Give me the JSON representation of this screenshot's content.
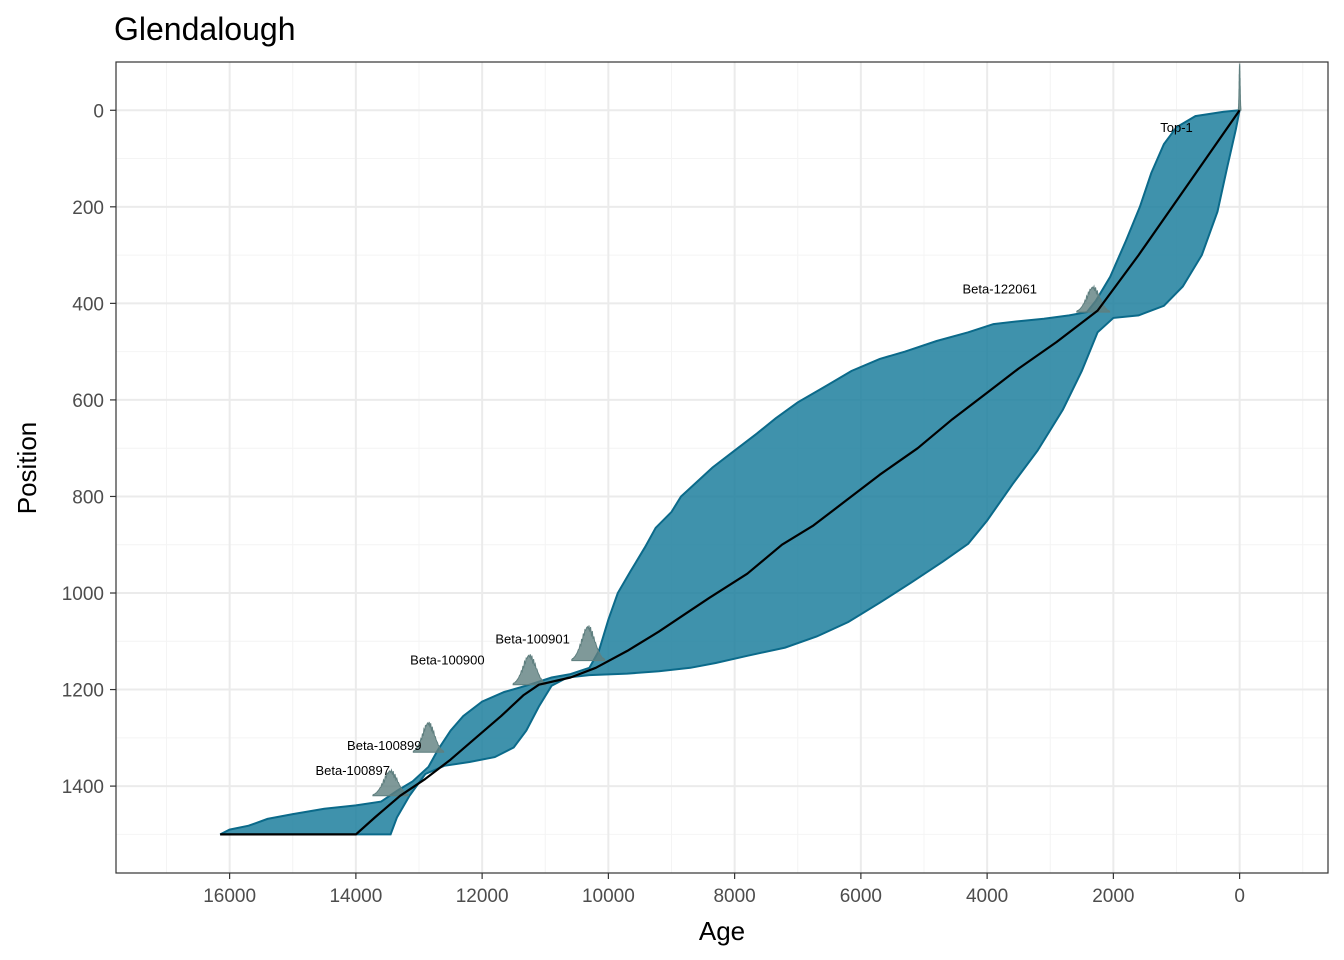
{
  "chart_data": {
    "type": "area",
    "title": "Glendalough",
    "xlabel": "Age",
    "ylabel": "Position",
    "x_reversed": true,
    "y_reversed": true,
    "xlim": [
      17800,
      -1400
    ],
    "ylim": [
      -100,
      1580
    ],
    "xticks": [
      16000,
      14000,
      12000,
      10000,
      8000,
      6000,
      4000,
      2000,
      0
    ],
    "yticks": [
      0,
      200,
      400,
      600,
      800,
      1000,
      1200,
      1400
    ],
    "grid": true,
    "colors": {
      "band_fill": "#1d7f9e",
      "band_stroke": "#0b6a8a",
      "median_line": "#000000",
      "density": "#5f7f7f",
      "grid_major": "#ebebeb",
      "grid_minor": "#f4f4f4",
      "panel_border": "#333333"
    },
    "band_older": [
      {
        "age": 16150,
        "pos": 1500
      },
      {
        "age": 16000,
        "pos": 1490
      },
      {
        "age": 15700,
        "pos": 1482
      },
      {
        "age": 15400,
        "pos": 1468
      },
      {
        "age": 15000,
        "pos": 1458
      },
      {
        "age": 14500,
        "pos": 1447
      },
      {
        "age": 14000,
        "pos": 1440
      },
      {
        "age": 13600,
        "pos": 1432
      },
      {
        "age": 13350,
        "pos": 1410
      },
      {
        "age": 13100,
        "pos": 1390
      },
      {
        "age": 12850,
        "pos": 1360
      },
      {
        "age": 12700,
        "pos": 1325
      },
      {
        "age": 12500,
        "pos": 1285
      },
      {
        "age": 12300,
        "pos": 1255
      },
      {
        "age": 12000,
        "pos": 1225
      },
      {
        "age": 11650,
        "pos": 1205
      },
      {
        "age": 11250,
        "pos": 1190
      },
      {
        "age": 10900,
        "pos": 1175
      },
      {
        "age": 10600,
        "pos": 1168
      },
      {
        "age": 10300,
        "pos": 1155
      },
      {
        "age": 10150,
        "pos": 1120
      },
      {
        "age": 10000,
        "pos": 1055
      },
      {
        "age": 9850,
        "pos": 1000
      },
      {
        "age": 9650,
        "pos": 955
      },
      {
        "age": 9420,
        "pos": 905
      },
      {
        "age": 9250,
        "pos": 865
      },
      {
        "age": 9000,
        "pos": 832
      },
      {
        "age": 8850,
        "pos": 800
      },
      {
        "age": 8600,
        "pos": 770
      },
      {
        "age": 8350,
        "pos": 740
      },
      {
        "age": 8000,
        "pos": 705
      },
      {
        "age": 7650,
        "pos": 670
      },
      {
        "age": 7350,
        "pos": 638
      },
      {
        "age": 7000,
        "pos": 605
      },
      {
        "age": 6600,
        "pos": 575
      },
      {
        "age": 6150,
        "pos": 540
      },
      {
        "age": 5700,
        "pos": 515
      },
      {
        "age": 5300,
        "pos": 500
      },
      {
        "age": 4800,
        "pos": 478
      },
      {
        "age": 4300,
        "pos": 460
      },
      {
        "age": 3900,
        "pos": 443
      },
      {
        "age": 3500,
        "pos": 437
      },
      {
        "age": 3100,
        "pos": 432
      },
      {
        "age": 2700,
        "pos": 425
      },
      {
        "age": 2420,
        "pos": 418
      },
      {
        "age": 2280,
        "pos": 395
      },
      {
        "age": 2050,
        "pos": 345
      },
      {
        "age": 1800,
        "pos": 270
      },
      {
        "age": 1580,
        "pos": 200
      },
      {
        "age": 1400,
        "pos": 130
      },
      {
        "age": 1200,
        "pos": 70
      },
      {
        "age": 1000,
        "pos": 35
      },
      {
        "age": 700,
        "pos": 12
      },
      {
        "age": 250,
        "pos": 3
      },
      {
        "age": 0,
        "pos": 0
      }
    ],
    "band_younger": [
      {
        "age": 0,
        "pos": 0
      },
      {
        "age": 60,
        "pos": 40
      },
      {
        "age": 200,
        "pos": 120
      },
      {
        "age": 350,
        "pos": 210
      },
      {
        "age": 600,
        "pos": 300
      },
      {
        "age": 900,
        "pos": 365
      },
      {
        "age": 1200,
        "pos": 405
      },
      {
        "age": 1600,
        "pos": 425
      },
      {
        "age": 2000,
        "pos": 430
      },
      {
        "age": 2250,
        "pos": 460
      },
      {
        "age": 2500,
        "pos": 540
      },
      {
        "age": 2800,
        "pos": 620
      },
      {
        "age": 3200,
        "pos": 705
      },
      {
        "age": 3600,
        "pos": 775
      },
      {
        "age": 4000,
        "pos": 850
      },
      {
        "age": 4300,
        "pos": 898
      },
      {
        "age": 4700,
        "pos": 935
      },
      {
        "age": 5200,
        "pos": 978
      },
      {
        "age": 5700,
        "pos": 1020
      },
      {
        "age": 6200,
        "pos": 1060
      },
      {
        "age": 6700,
        "pos": 1090
      },
      {
        "age": 7200,
        "pos": 1113
      },
      {
        "age": 7800,
        "pos": 1130
      },
      {
        "age": 8300,
        "pos": 1145
      },
      {
        "age": 8700,
        "pos": 1155
      },
      {
        "age": 9200,
        "pos": 1162
      },
      {
        "age": 9700,
        "pos": 1167
      },
      {
        "age": 10300,
        "pos": 1170
      },
      {
        "age": 10650,
        "pos": 1175
      },
      {
        "age": 10900,
        "pos": 1192
      },
      {
        "age": 11100,
        "pos": 1235
      },
      {
        "age": 11300,
        "pos": 1285
      },
      {
        "age": 11500,
        "pos": 1320
      },
      {
        "age": 11800,
        "pos": 1340
      },
      {
        "age": 12200,
        "pos": 1350
      },
      {
        "age": 12600,
        "pos": 1358
      },
      {
        "age": 12900,
        "pos": 1375
      },
      {
        "age": 13150,
        "pos": 1420
      },
      {
        "age": 13350,
        "pos": 1465
      },
      {
        "age": 13450,
        "pos": 1500
      }
    ],
    "median_line": [
      {
        "age": 16150,
        "pos": 1500
      },
      {
        "age": 14000,
        "pos": 1500
      },
      {
        "age": 13700,
        "pos": 1465
      },
      {
        "age": 13300,
        "pos": 1420
      },
      {
        "age": 12900,
        "pos": 1385
      },
      {
        "age": 12500,
        "pos": 1345
      },
      {
        "age": 12100,
        "pos": 1300
      },
      {
        "age": 11700,
        "pos": 1255
      },
      {
        "age": 11350,
        "pos": 1212
      },
      {
        "age": 11100,
        "pos": 1190
      },
      {
        "age": 10600,
        "pos": 1175
      },
      {
        "age": 10200,
        "pos": 1155
      },
      {
        "age": 9700,
        "pos": 1120
      },
      {
        "age": 9200,
        "pos": 1080
      },
      {
        "age": 8800,
        "pos": 1045
      },
      {
        "age": 8400,
        "pos": 1010
      },
      {
        "age": 7800,
        "pos": 960
      },
      {
        "age": 7250,
        "pos": 900
      },
      {
        "age": 6750,
        "pos": 860
      },
      {
        "age": 6250,
        "pos": 810
      },
      {
        "age": 5700,
        "pos": 755
      },
      {
        "age": 5100,
        "pos": 700
      },
      {
        "age": 4550,
        "pos": 640
      },
      {
        "age": 4000,
        "pos": 585
      },
      {
        "age": 3500,
        "pos": 535
      },
      {
        "age": 2900,
        "pos": 480
      },
      {
        "age": 2250,
        "pos": 415
      },
      {
        "age": 1600,
        "pos": 300
      },
      {
        "age": 800,
        "pos": 150
      },
      {
        "age": 0,
        "pos": 0
      }
    ],
    "dates": [
      {
        "label": "Top-1",
        "age": 0,
        "pos": 0,
        "spread": 20,
        "height": 100,
        "label_age": 1000,
        "label_pos": -45
      },
      {
        "label": "Beta-122061",
        "age": 2320,
        "pos": 418,
        "spread": 260,
        "height": 55,
        "label_age": 3800,
        "label_pos": -380
      },
      {
        "label": "Beta-100901",
        "age": 10320,
        "pos": 1140,
        "spread": 260,
        "height": 75,
        "label_age": 11200,
        "label_pos": -1105
      },
      {
        "label": "Beta-100900",
        "age": 11250,
        "pos": 1190,
        "spread": 260,
        "height": 65,
        "label_age": 12550,
        "label_pos": -1148
      },
      {
        "label": "Beta-100899",
        "age": 12850,
        "pos": 1330,
        "spread": 240,
        "height": 65,
        "label_age": 13550,
        "label_pos": -1325
      },
      {
        "label": "Beta-100897",
        "age": 13450,
        "pos": 1420,
        "spread": 280,
        "height": 55,
        "label_age": 14050,
        "label_pos": -1377
      }
    ]
  }
}
